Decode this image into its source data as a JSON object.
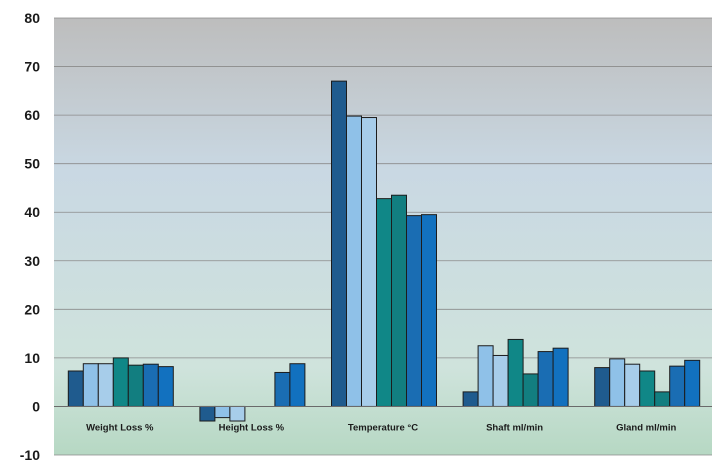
{
  "chart_data": {
    "type": "bar",
    "title": "",
    "xlabel": "",
    "ylabel": "",
    "ylim": [
      -10,
      80
    ],
    "yticks": [
      -10,
      0,
      10,
      20,
      30,
      40,
      50,
      60,
      70,
      80
    ],
    "grid": true,
    "legend": "none",
    "categories": [
      "Weight Loss %",
      "Height Loss %",
      "Temperature °C",
      "Shaft ml/min",
      "Gland ml/min"
    ],
    "series": [
      {
        "color": "#1f5b8e",
        "values": [
          7.3,
          -3.0,
          67.0,
          3.0,
          8.0
        ]
      },
      {
        "color": "#8fc1e8",
        "values": [
          8.8,
          -2.3,
          59.8,
          12.5,
          9.8
        ]
      },
      {
        "color": "#a7cdea",
        "values": [
          8.8,
          -3.0,
          59.5,
          10.5,
          8.7
        ]
      },
      {
        "color": "#108787",
        "values": [
          10.0,
          0,
          42.8,
          13.8,
          7.3
        ]
      },
      {
        "color": "#127e80",
        "values": [
          8.5,
          0,
          43.5,
          6.7,
          3.0
        ]
      },
      {
        "color": "#1a6db3",
        "values": [
          8.7,
          7.0,
          39.3,
          11.3,
          8.3
        ]
      },
      {
        "color": "#1271bf",
        "values": [
          8.2,
          8.8,
          39.5,
          12.0,
          9.5
        ]
      }
    ]
  }
}
